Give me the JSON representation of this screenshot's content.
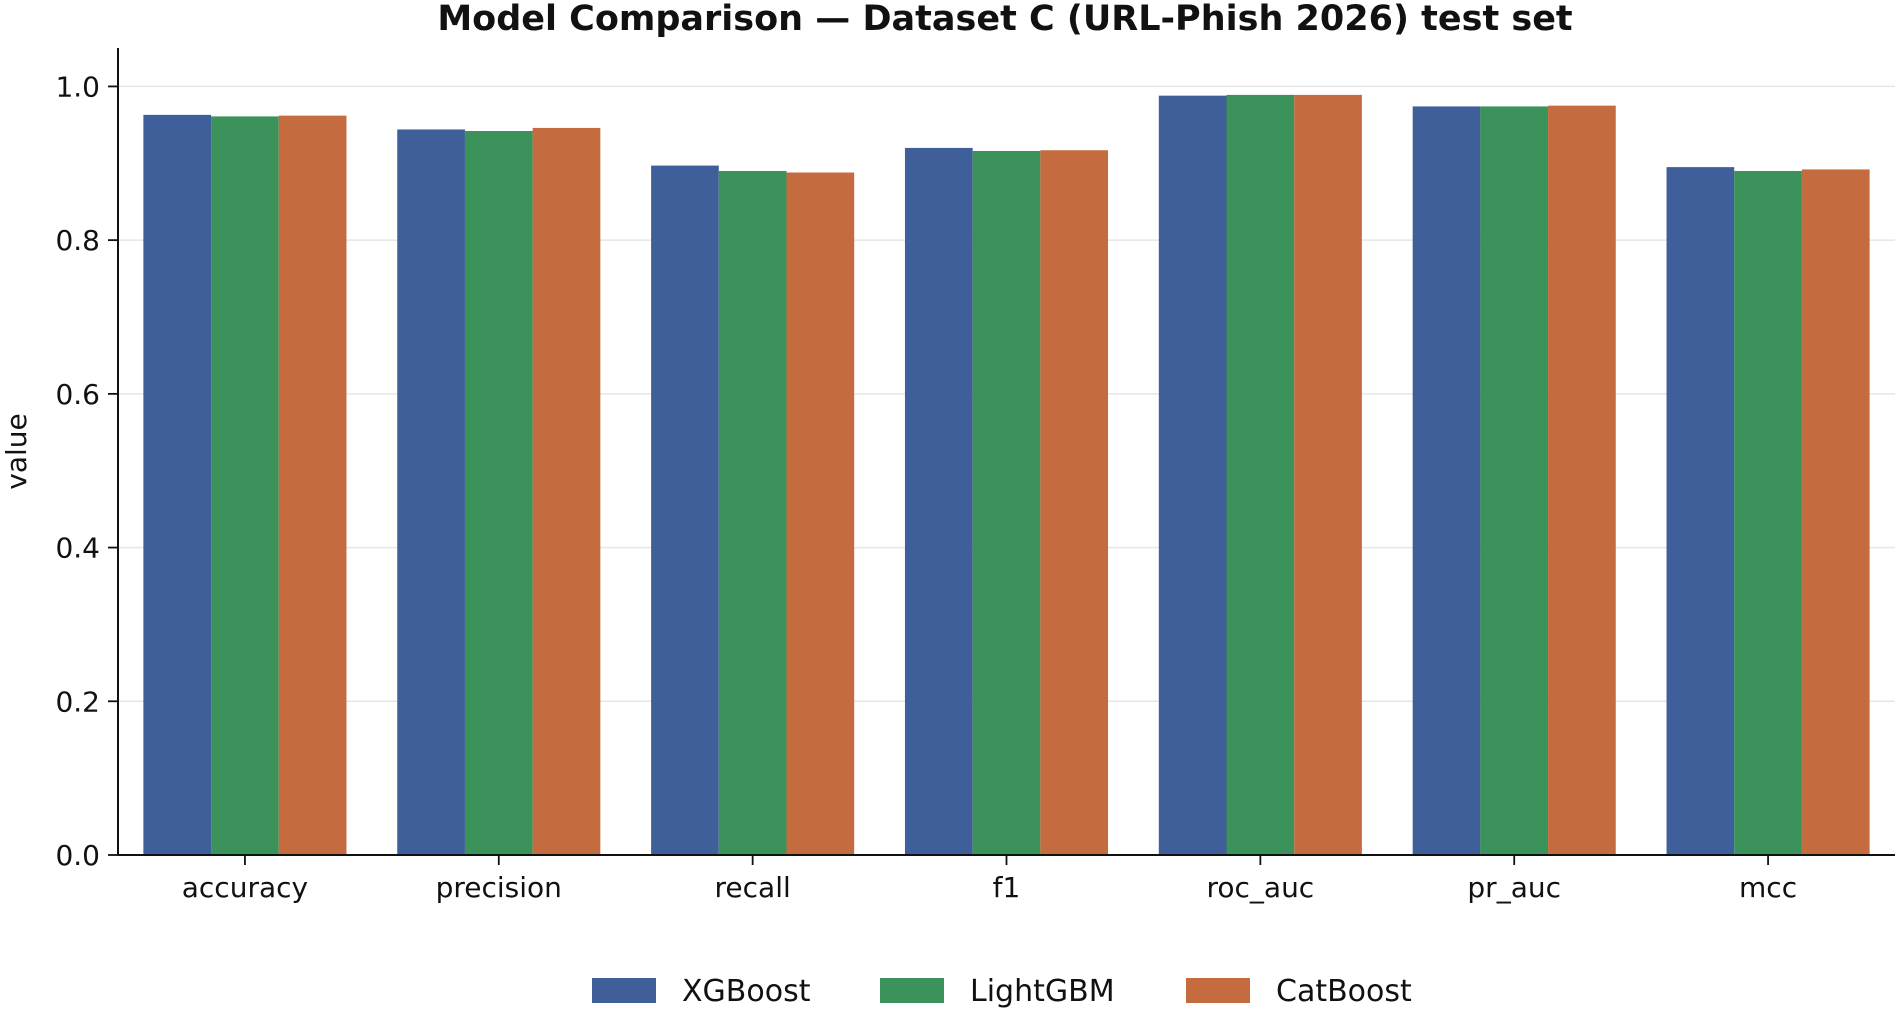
{
  "chart_data": {
    "type": "bar",
    "title": "Model Comparison — Dataset C (URL-Phish 2026) test set",
    "xlabel": "",
    "ylabel": "value",
    "ylim": [
      0,
      1.05
    ],
    "yticks": [
      "0.0",
      "0.2",
      "0.4",
      "0.6",
      "0.8",
      "1.0"
    ],
    "grid": "horizontal",
    "legend_position": "bottom-center",
    "categories": [
      "accuracy",
      "precision",
      "recall",
      "f1",
      "roc_auc",
      "pr_auc",
      "mcc"
    ],
    "series": [
      {
        "name": "XGBoost",
        "color": "#3e5f99",
        "values": [
          0.963,
          0.944,
          0.897,
          0.92,
          0.988,
          0.974,
          0.895
        ]
      },
      {
        "name": "LightGBM",
        "color": "#3b925a",
        "values": [
          0.961,
          0.942,
          0.89,
          0.916,
          0.989,
          0.974,
          0.89
        ]
      },
      {
        "name": "CatBoost",
        "color": "#c46b40",
        "values": [
          0.962,
          0.946,
          0.888,
          0.917,
          0.989,
          0.975,
          0.892
        ]
      }
    ]
  }
}
